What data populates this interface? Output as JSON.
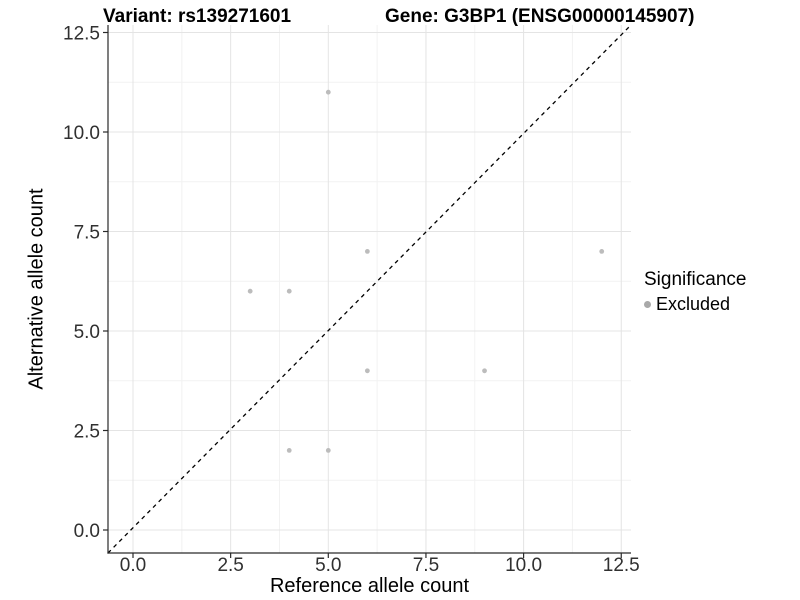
{
  "chart_data": {
    "type": "scatter",
    "title_left": "Variant: rs139271601",
    "title_right": "Gene: G3BP1 (ENSG00000145907)",
    "xlabel": "Reference allele count",
    "ylabel": "Alternative allele count",
    "xlim": [
      -0.64,
      12.77
    ],
    "ylim": [
      -0.58,
      12.69
    ],
    "x_ticks": [
      0.0,
      2.5,
      5.0,
      7.5,
      10.0,
      12.5
    ],
    "y_ticks": [
      0.0,
      2.5,
      5.0,
      7.5,
      10.0,
      12.5
    ],
    "x_tick_labels": [
      "0.0",
      "2.5",
      "5.0",
      "7.5",
      "10.0",
      "12.5"
    ],
    "y_tick_labels": [
      "0.0",
      "2.5",
      "5.0",
      "7.5",
      "10.0",
      "12.5"
    ],
    "grid": "major+minor",
    "series": [
      {
        "name": "Excluded",
        "points": [
          {
            "x": 5,
            "y": 11
          },
          {
            "x": 6,
            "y": 7
          },
          {
            "x": 12,
            "y": 7
          },
          {
            "x": 3,
            "y": 6
          },
          {
            "x": 4,
            "y": 6
          },
          {
            "x": 6,
            "y": 4
          },
          {
            "x": 9,
            "y": 4
          },
          {
            "x": 4,
            "y": 2
          },
          {
            "x": 5,
            "y": 2
          }
        ]
      }
    ],
    "diagonal_line": {
      "equation": "y = x",
      "style": "dashed",
      "color": "#000000"
    },
    "legend": {
      "position": "right",
      "title": "Significance",
      "items": [
        {
          "label": "Excluded",
          "color": "#a9a9a9"
        }
      ]
    },
    "colors": {
      "point": "#bcbcbc",
      "legend_key": "#a9a9a9",
      "grid_major": "#e4e4e4",
      "grid_minor": "#f2f2f2",
      "axis_line": "#2a2a2a",
      "tick_label": "#303030",
      "background": "#ffffff"
    }
  }
}
